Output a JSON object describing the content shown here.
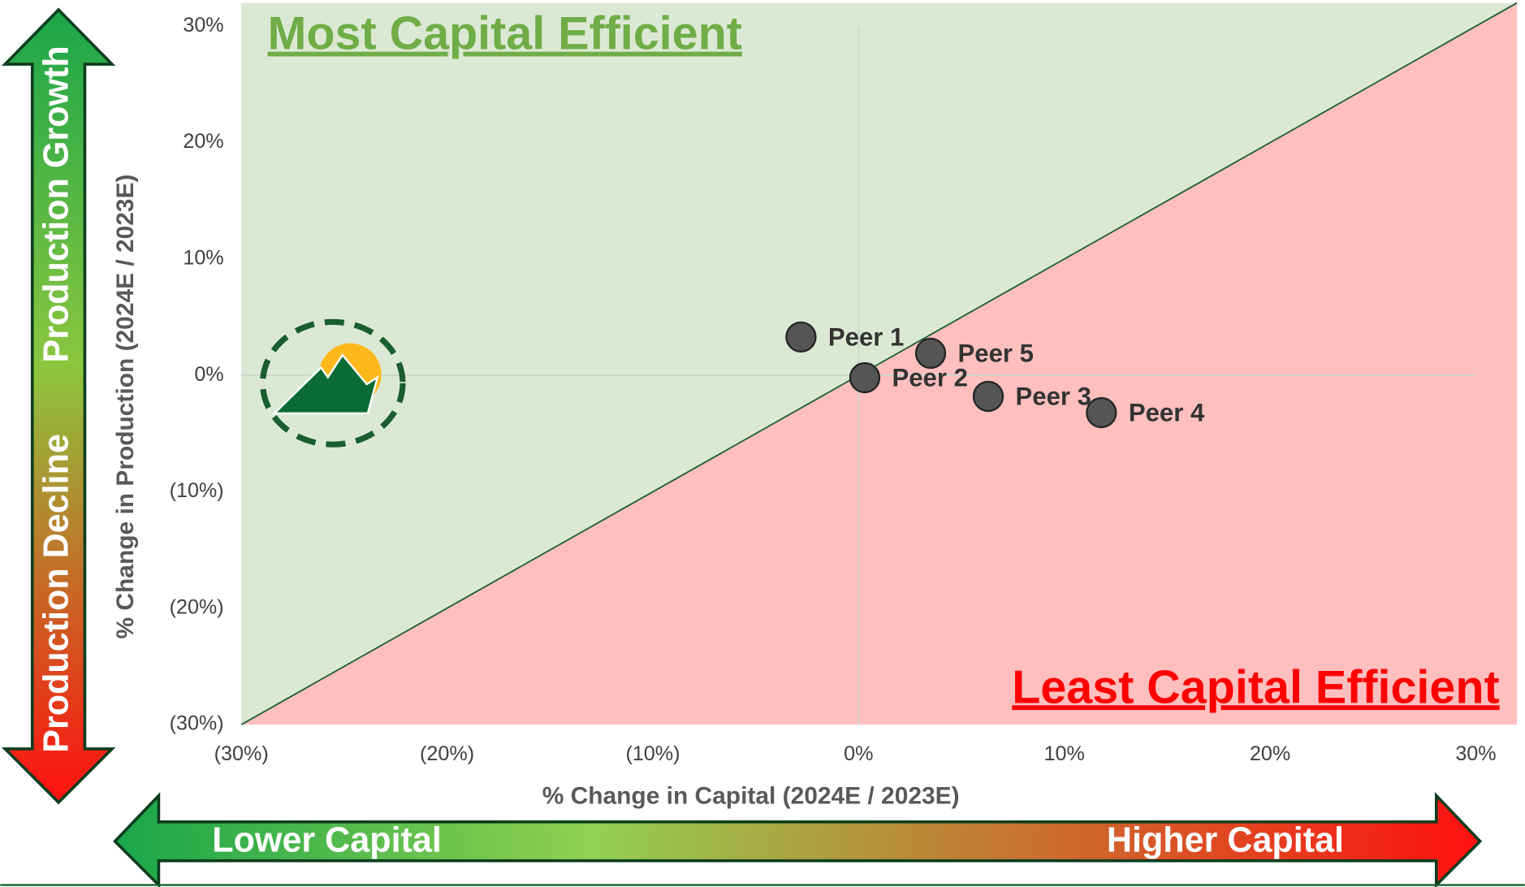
{
  "chart_data": {
    "type": "scatter",
    "xlabel": "% Change in Capital (2024E / 2023E)",
    "ylabel": "% Change in Production (2024E / 2023E)",
    "labels": [
      "Peer 1",
      "Peer 2",
      "Peer 5",
      "Peer 3",
      "Peer 4"
    ],
    "x": [
      -2.8,
      0.3,
      3.5,
      6.3,
      11.8
    ],
    "values": [
      3.3,
      -0.2,
      1.9,
      -1.8,
      -3.2
    ],
    "color": "#555555",
    "xlim": [
      -30,
      32
    ],
    "ylim": [
      -30,
      32
    ],
    "xticks": [
      {
        "value": -30,
        "label": "(30%)"
      },
      {
        "value": -20,
        "label": "(20%)"
      },
      {
        "value": -10,
        "label": "(10%)"
      },
      {
        "value": 0,
        "label": "0%"
      },
      {
        "value": 10,
        "label": "10%"
      },
      {
        "value": 20,
        "label": "20%"
      },
      {
        "value": 30,
        "label": "30%"
      }
    ],
    "yticks": [
      {
        "value": 30,
        "label": "30%"
      },
      {
        "value": 20,
        "label": "20%"
      },
      {
        "value": 10,
        "label": "10%"
      },
      {
        "value": 0,
        "label": "0%"
      },
      {
        "value": -10,
        "label": "(10%)"
      },
      {
        "value": -20,
        "label": "(20%)"
      },
      {
        "value": -30,
        "label": "(30%)"
      }
    ],
    "annotations": {
      "top_left": "Most Capital Efficient",
      "bottom_right": "Least Capital Efficient",
      "up": "Production Growth",
      "down": "Production Decline",
      "left": "Lower Capital",
      "right": "Higher Capital"
    }
  }
}
